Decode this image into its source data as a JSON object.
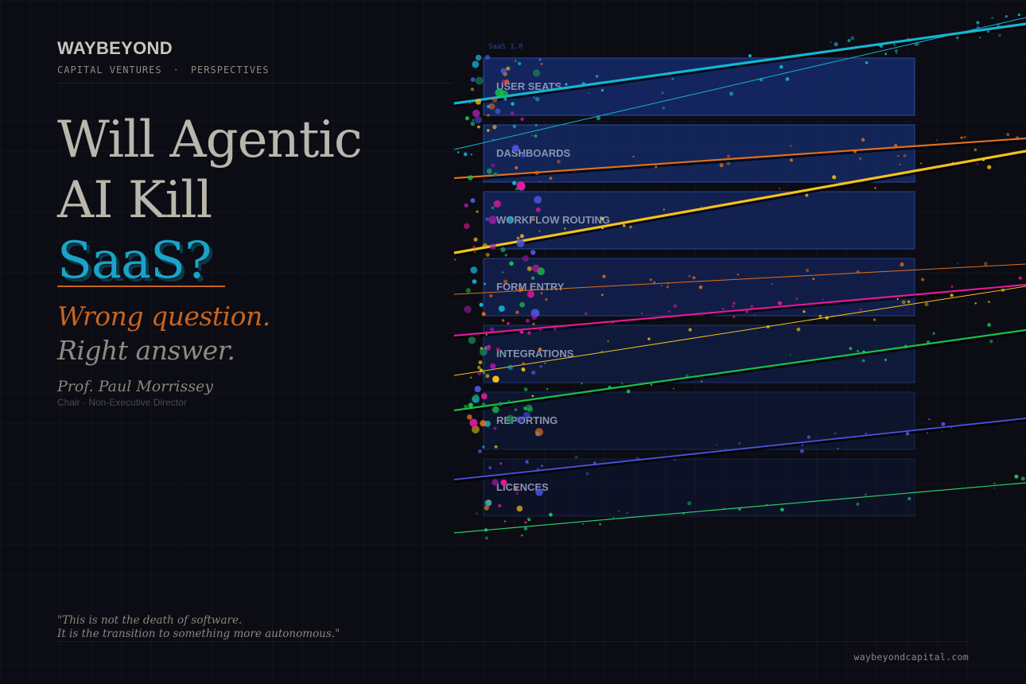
{
  "brand": "WAYBEYOND",
  "subnav": {
    "left": "CAPITAL VENTURES",
    "sep": "·",
    "right": "PERSPECTIVES"
  },
  "headline": {
    "line1": "Will Agentic",
    "line2": "AI Kill",
    "line3": "SaaS?"
  },
  "tagline": {
    "line1": "Wrong question.",
    "line2": "Right answer."
  },
  "author": {
    "name": "Prof. Paul Morrissey",
    "role": "Chair · Non-Executive Director"
  },
  "quote": {
    "line1": "\"This is not the death of software.",
    "line2": "It is the transition to something more autonomous.\""
  },
  "url": "waybeyondcapital.com",
  "stack": {
    "label": "SaaS 1.0",
    "bands": [
      "USER SEATS",
      "DASHBOARDS",
      "WORKFLOW ROUTING",
      "FORM ENTRY",
      "INTEGRATIONS",
      "REPORTING",
      "LICENCES"
    ]
  },
  "colors": {
    "background": "#0b0c14",
    "accent_cyan": "#1aa3c7",
    "accent_orange": "#c8641e",
    "band_fill": "#152a68",
    "band_stroke": "#2d4fa8",
    "streams": [
      "#13b7d4",
      "#18b4d0",
      "#e0701e",
      "#f4c21a",
      "#e0701e",
      "#e21a9c",
      "#f4c21a",
      "#18c34a",
      "#4a55e0",
      "#28d06a"
    ]
  }
}
